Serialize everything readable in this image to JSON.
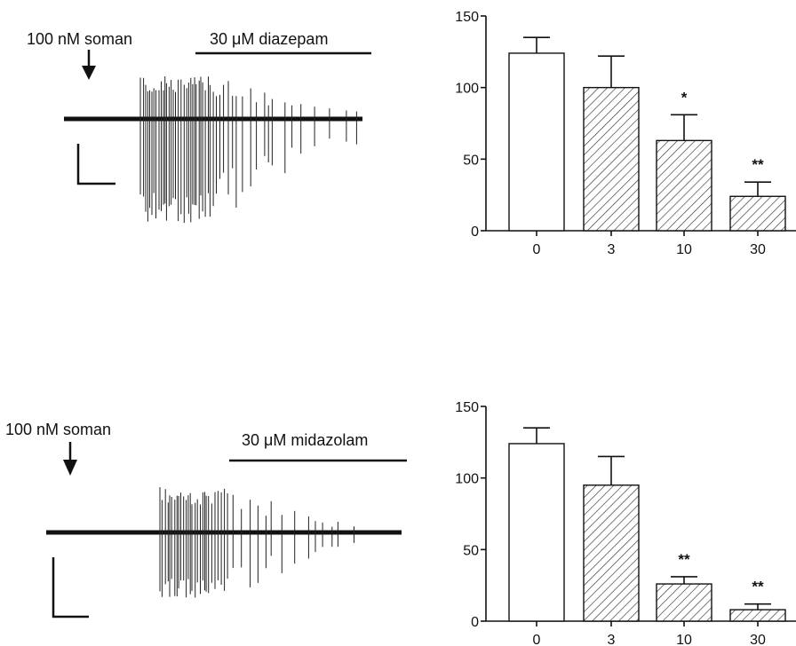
{
  "panels": [
    {
      "trace": {
        "drug_label": "100 nM soman",
        "treatment_label": "30 μM diazepam"
      },
      "chart": {
        "type": "bar",
        "categories": [
          "0",
          "3",
          "10",
          "30"
        ],
        "values": [
          124,
          100,
          63,
          24
        ],
        "errors": [
          11,
          22,
          18,
          10
        ],
        "significance": [
          "",
          "",
          "*",
          "**"
        ],
        "ylim": [
          0,
          150
        ],
        "yticks": [
          "0",
          "50",
          "100",
          "150"
        ]
      }
    },
    {
      "trace": {
        "drug_label": "100 nM soman",
        "treatment_label": "30 μM midazolam"
      },
      "chart": {
        "type": "bar",
        "categories": [
          "0",
          "3",
          "10",
          "30"
        ],
        "values": [
          124,
          95,
          26,
          8
        ],
        "errors": [
          11,
          20,
          5,
          4
        ],
        "significance": [
          "",
          "",
          "**",
          "**"
        ],
        "ylim": [
          0,
          150
        ],
        "yticks": [
          "0",
          "50",
          "100",
          "150"
        ]
      }
    }
  ],
  "chart_data": [
    {
      "type": "bar",
      "categories": [
        "0",
        "3",
        "10",
        "30"
      ],
      "values": [
        124,
        100,
        63,
        24
      ],
      "errors": [
        11,
        22,
        18,
        10
      ],
      "annotations": [
        "",
        "",
        "*",
        "**"
      ],
      "ylim": [
        0,
        150
      ],
      "yticks": [
        0,
        50,
        100,
        150
      ],
      "xlabel": "",
      "ylabel": "",
      "title": ""
    },
    {
      "type": "bar",
      "categories": [
        "0",
        "3",
        "10",
        "30"
      ],
      "values": [
        124,
        95,
        26,
        8
      ],
      "errors": [
        11,
        20,
        5,
        4
      ],
      "annotations": [
        "",
        "",
        "**",
        "**"
      ],
      "ylim": [
        0,
        150
      ],
      "yticks": [
        0,
        50,
        100,
        150
      ],
      "xlabel": "",
      "ylabel": "",
      "title": ""
    }
  ]
}
